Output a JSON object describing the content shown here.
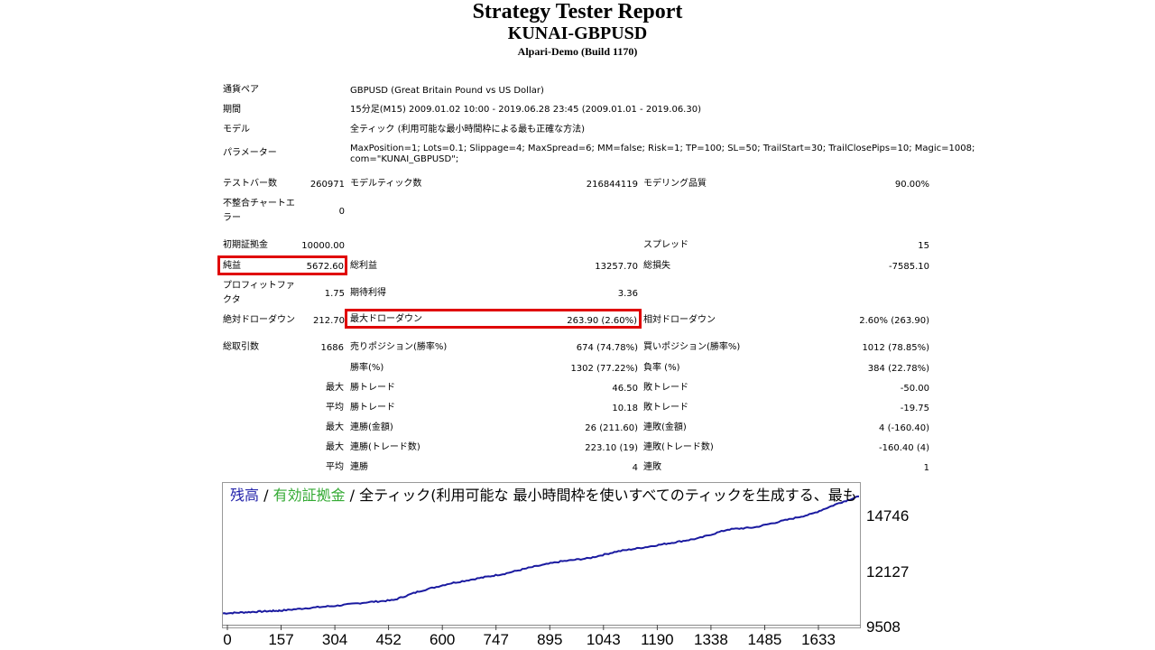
{
  "header": {
    "title": "Strategy Tester Report",
    "symbol": "KUNAI-GBPUSD",
    "server": "Alpari-Demo (Build 1170)"
  },
  "info": {
    "pair_label": "通貨ペア",
    "pair_value": "GBPUSD (Great Britain Pound vs US Dollar)",
    "period_label": "期間",
    "period_value": "15分足(M15) 2009.01.02 10:00 - 2019.06.28 23:45 (2009.01.01 - 2019.06.30)",
    "model_label": "モデル",
    "model_value": "全ティック (利用可能な最小時間枠による最も正確な方法)",
    "params_label": "パラメーター",
    "params_line1": "MaxPosition=1; Lots=0.1; Slippage=4; MaxSpread=6; MM=false; Risk=1; TP=100; SL=50; TrailStart=30; TrailClosePips=10; Magic=1008;",
    "params_line2": "com=\"KUNAI_GBPUSD\";"
  },
  "stats": {
    "bars_label": "テストバー数",
    "bars_value": "260971",
    "ticks_label": "モデルティック数",
    "ticks_value": "216844119",
    "quality_label": "モデリング品質",
    "quality_value": "90.00%",
    "mismatch_label_1": "不整合チャートエ",
    "mismatch_label_2": "ラー",
    "mismatch_value": "0",
    "deposit_label": "初期証拠金",
    "deposit_value": "10000.00",
    "spread_label": "スプレッド",
    "spread_value": "15",
    "net_label": "純益",
    "net_value": "5672.60",
    "gross_profit_label": "総利益",
    "gross_profit_value": "13257.70",
    "gross_loss_label": "総損失",
    "gross_loss_value": "-7585.10",
    "pf_label_1": "プロフィットファ",
    "pf_label_2": "クタ",
    "pf_value": "1.75",
    "expected_label": "期待利得",
    "expected_value": "3.36",
    "abs_dd_label": "絶対ドローダウン",
    "abs_dd_value": "212.70",
    "max_dd_label": "最大ドローダウン",
    "max_dd_value": "263.90 (2.60%)",
    "rel_dd_label": "相対ドローダウン",
    "rel_dd_value": "2.60% (263.90)",
    "trades_label": "総取引数",
    "trades_value": "1686",
    "short_label": "売りポジション(勝率%)",
    "short_value": "674 (74.78%)",
    "long_label": "買いポジション(勝率%)",
    "long_value": "1012 (78.85%)",
    "win_rate_label": "勝率(%)",
    "win_rate_value": "1302 (77.22%)",
    "loss_rate_label": "負率 (%)",
    "loss_rate_value": "384 (22.78%)",
    "max_word": "最大",
    "avg_word": "平均",
    "max_win_label": "勝トレード",
    "max_win_value": "46.50",
    "max_loss_label": "敗トレード",
    "max_loss_value": "-50.00",
    "avg_win_label": "勝トレード",
    "avg_win_value": "10.18",
    "avg_loss_label": "敗トレード",
    "avg_loss_value": "-19.75",
    "cons_win_amt_label": "連勝(金額)",
    "cons_win_amt_value": "26 (211.60)",
    "cons_loss_amt_label": "連敗(金額)",
    "cons_loss_amt_value": "4 (-160.40)",
    "cons_win_trd_label": "連勝(トレード数)",
    "cons_win_trd_value": "223.10 (19)",
    "cons_loss_trd_label": "連敗(トレード数)",
    "cons_loss_trd_value": "-160.40 (4)",
    "avg_cons_win_label": "連勝",
    "avg_cons_win_value": "4",
    "avg_cons_loss_label": "連敗",
    "avg_cons_loss_value": "1"
  },
  "chart_data": {
    "type": "line",
    "legend_balance": "残高",
    "legend_sep1": " / ",
    "legend_equity": "有効証拠金",
    "legend_sep2": " / ",
    "legend_rest": "全ティック(利用可能な 最小時間枠を使いすべてのティックを生成する、最も",
    "y_ticks": [
      "14746",
      "12127",
      "9508"
    ],
    "x_ticks": [
      "0",
      "157",
      "304",
      "452",
      "600",
      "747",
      "895",
      "1043",
      "1190",
      "1338",
      "1485",
      "1633"
    ],
    "ylim": [
      9508,
      15400
    ],
    "xlim": [
      0,
      1686
    ],
    "colors": {
      "balance": "#1a1aa0",
      "equity": "#33aa33"
    },
    "series": [
      {
        "name": "残高",
        "x": [
          0,
          60,
          120,
          157,
          230,
          304,
          380,
          452,
          520,
          600,
          680,
          747,
          820,
          895,
          970,
          1043,
          1120,
          1190,
          1260,
          1338,
          1410,
          1485,
          1560,
          1633,
          1686
        ],
        "values": [
          9900,
          9950,
          10000,
          10030,
          10150,
          10250,
          10400,
          10500,
          10900,
          11250,
          11500,
          11700,
          12000,
          12250,
          12400,
          12700,
          12900,
          13100,
          13300,
          13700,
          13800,
          14100,
          14400,
          14900,
          15200
        ]
      }
    ]
  }
}
